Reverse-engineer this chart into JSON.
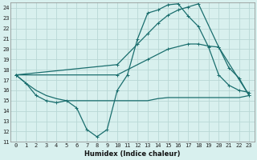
{
  "xlabel": "Humidex (Indice chaleur)",
  "xlim": [
    -0.5,
    23.5
  ],
  "ylim": [
    11,
    24.5
  ],
  "xticks": [
    0,
    1,
    2,
    3,
    4,
    5,
    6,
    7,
    8,
    9,
    10,
    11,
    12,
    13,
    14,
    15,
    16,
    17,
    18,
    19,
    20,
    21,
    22,
    23
  ],
  "yticks": [
    11,
    12,
    13,
    14,
    15,
    16,
    17,
    18,
    19,
    20,
    21,
    22,
    23,
    24
  ],
  "bg_color": "#d8f0ee",
  "grid_color": "#b8d8d5",
  "line_color": "#1a6e6e",
  "line1_x": [
    0,
    1,
    2,
    3,
    4,
    5,
    6,
    7,
    8,
    9,
    10,
    11,
    12,
    13,
    14,
    15,
    16,
    17,
    18,
    19,
    20,
    21,
    22,
    23
  ],
  "line1_y": [
    17.5,
    16.7,
    15.5,
    15.0,
    14.8,
    15.0,
    14.3,
    12.2,
    11.5,
    12.2,
    16.0,
    17.5,
    21.0,
    23.5,
    23.8,
    24.3,
    24.4,
    23.2,
    22.2,
    20.2,
    17.5,
    16.5,
    16.0,
    15.8
  ],
  "line2_x": [
    0,
    1,
    2,
    3,
    4,
    5,
    9,
    10,
    11,
    12,
    13,
    14,
    15,
    16,
    17,
    18,
    19,
    20,
    21,
    22,
    23
  ],
  "line2_y": [
    17.5,
    16.7,
    16.0,
    15.5,
    15.2,
    15.0,
    15.0,
    15.0,
    15.0,
    15.0,
    15.0,
    15.2,
    15.3,
    15.3,
    15.3,
    15.3,
    15.3,
    15.3,
    15.3,
    15.3,
    15.5
  ],
  "line3_x": [
    0,
    10,
    12,
    13,
    14,
    15,
    16,
    17,
    18,
    20,
    21,
    22,
    23
  ],
  "line3_y": [
    17.5,
    18.5,
    20.5,
    21.5,
    22.5,
    23.3,
    23.8,
    24.1,
    24.4,
    20.2,
    18.2,
    17.2,
    15.5
  ],
  "line4_x": [
    0,
    10,
    13,
    15,
    17,
    18,
    19,
    20,
    23
  ],
  "line4_y": [
    17.5,
    17.5,
    19.0,
    20.0,
    20.5,
    20.5,
    20.3,
    20.2,
    15.5
  ]
}
